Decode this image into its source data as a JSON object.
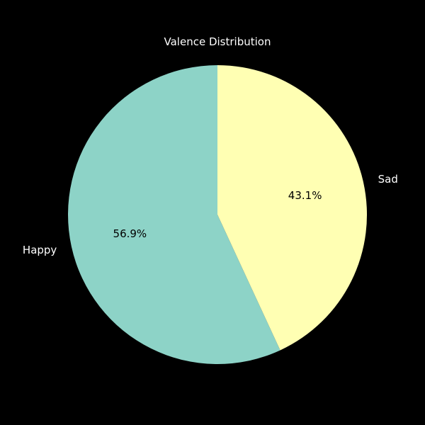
{
  "chart_data": {
    "type": "pie",
    "title": "Valence Distribution",
    "start_angle_deg": 90,
    "direction": "counterclockwise",
    "slices": [
      {
        "label": "Happy",
        "value": 56.9,
        "pct_label": "56.9%",
        "color": "#8dd3c7"
      },
      {
        "label": "Sad",
        "value": 43.1,
        "pct_label": "43.1%",
        "color": "#ffffb3"
      }
    ],
    "background": "#000000",
    "text_color": "#ffffff"
  }
}
